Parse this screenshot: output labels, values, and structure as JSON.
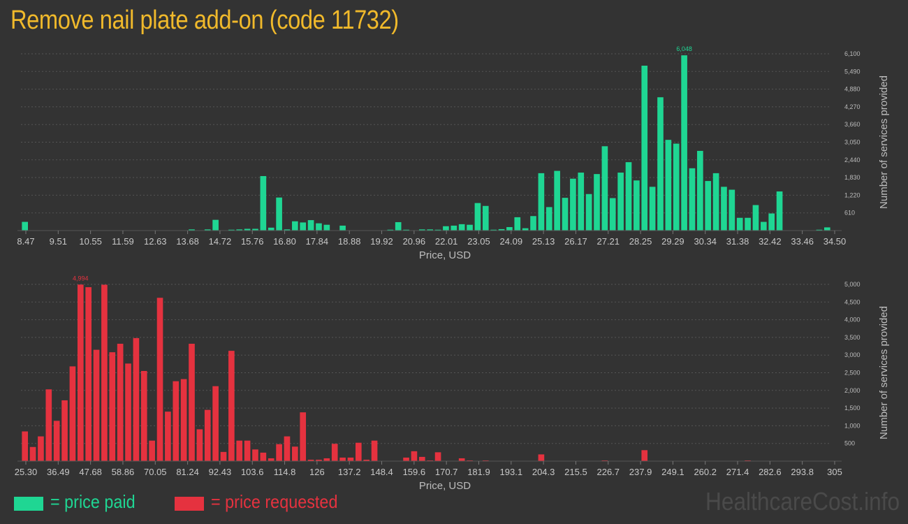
{
  "title": "Remove nail plate add-on (code 11732)",
  "legend": {
    "paid_label": "= price paid",
    "requested_label": "= price requested"
  },
  "colors": {
    "paid": "#1fd693",
    "requested": "#e5323f",
    "title": "#f0b92b"
  },
  "watermark": "HealthcareCost.info",
  "chart_data": [
    {
      "type": "bar",
      "name": "price-paid",
      "xlabel": "Price, USD",
      "ylabel": "Number of services provided",
      "ylim": [
        0,
        6100
      ],
      "x_tick_labels": [
        "8.47",
        "9.51",
        "10.55",
        "11.59",
        "12.63",
        "13.68",
        "14.72",
        "15.76",
        "16.80",
        "17.84",
        "18.88",
        "19.92",
        "20.96",
        "22.01",
        "23.05",
        "24.09",
        "25.13",
        "26.17",
        "27.21",
        "28.25",
        "29.29",
        "30.34",
        "31.38",
        "32.42",
        "33.46",
        "34.50"
      ],
      "y_tick_labels": [
        "610",
        "1,220",
        "1,830",
        "2,440",
        "3,050",
        "3,660",
        "4,270",
        "4,880",
        "5,490",
        "6,100"
      ],
      "y_tick_values": [
        610,
        1220,
        1830,
        2440,
        3050,
        3660,
        4270,
        4880,
        5490,
        6100
      ],
      "peak_label": "6,048",
      "values": [
        300,
        0,
        0,
        0,
        0,
        0,
        0,
        0,
        0,
        0,
        0,
        0,
        0,
        0,
        0,
        0,
        0,
        0,
        0,
        0,
        0,
        40,
        0,
        40,
        370,
        0,
        30,
        40,
        60,
        60,
        1880,
        100,
        1140,
        40,
        320,
        280,
        360,
        250,
        200,
        0,
        170,
        0,
        0,
        0,
        0,
        0,
        30,
        290,
        30,
        0,
        40,
        40,
        30,
        150,
        170,
        220,
        200,
        950,
        850,
        30,
        50,
        120,
        460,
        80,
        500,
        1980,
        810,
        2060,
        1130,
        1790,
        2000,
        1260,
        1950,
        2910,
        1120,
        2000,
        2360,
        1730,
        5690,
        1510,
        4600,
        3130,
        3000,
        6048,
        2150,
        2750,
        1710,
        1980,
        1510,
        1410,
        440,
        440,
        880,
        300,
        590,
        1350,
        0,
        0,
        0,
        0,
        30,
        110
      ]
    },
    {
      "type": "bar",
      "name": "price-requested",
      "xlabel": "Price, USD",
      "ylabel": "Number of services provided",
      "ylim": [
        0,
        5000
      ],
      "x_tick_labels": [
        "25.30",
        "36.49",
        "47.68",
        "58.86",
        "70.05",
        "81.24",
        "92.43",
        "103.6",
        "114.8",
        "126",
        "137.2",
        "148.4",
        "159.6",
        "170.7",
        "181.9",
        "193.1",
        "204.3",
        "215.5",
        "226.7",
        "237.9",
        "249.1",
        "260.2",
        "271.4",
        "282.6",
        "293.8",
        "305"
      ],
      "y_tick_labels": [
        "500",
        "1,000",
        "1,500",
        "2,000",
        "2,500",
        "3,000",
        "3,500",
        "4,000",
        "4,500",
        "5,000"
      ],
      "y_tick_values": [
        500,
        1000,
        1500,
        2000,
        2500,
        3000,
        3500,
        4000,
        4500,
        5000
      ],
      "peak_label": "4,994",
      "values": [
        840,
        400,
        700,
        2030,
        1140,
        1720,
        2680,
        4994,
        4920,
        3150,
        4990,
        3080,
        3320,
        2760,
        3480,
        2550,
        580,
        4620,
        1400,
        2260,
        2320,
        3320,
        900,
        1450,
        2120,
        260,
        3120,
        580,
        580,
        330,
        240,
        80,
        480,
        700,
        410,
        1380,
        40,
        40,
        80,
        490,
        100,
        100,
        520,
        40,
        580,
        0,
        0,
        0,
        100,
        280,
        120,
        20,
        250,
        0,
        0,
        80,
        20,
        0,
        20,
        0,
        10,
        0,
        0,
        0,
        0,
        190,
        0,
        0,
        0,
        0,
        0,
        0,
        0,
        20,
        0,
        0,
        0,
        0,
        310,
        0,
        0,
        0,
        0,
        0,
        0,
        0,
        0,
        0,
        0,
        0,
        0,
        20,
        0,
        0,
        0,
        0,
        0,
        0,
        0,
        0,
        0,
        0
      ]
    }
  ]
}
